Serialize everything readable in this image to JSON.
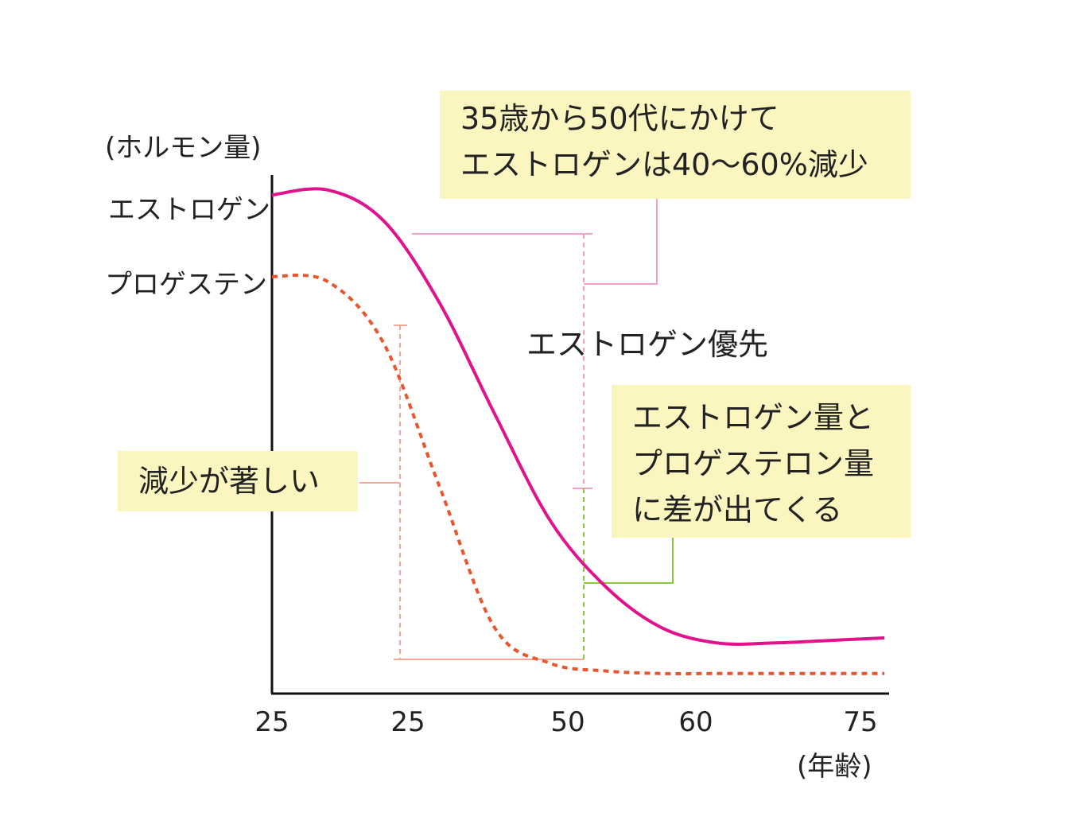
{
  "chart_data": {
    "type": "line",
    "ylabel": "(ホルモン量)",
    "xlabel": "(年齢)",
    "x_tick_labels": [
      "25",
      "25",
      "50",
      "60",
      "75"
    ],
    "grid": false,
    "legend": "none",
    "x": [
      20,
      25,
      30,
      35,
      40,
      45,
      50,
      55,
      60,
      65,
      70,
      75
    ],
    "series": [
      {
        "name": "エストロゲン",
        "style": "solid",
        "color": "#e0138c",
        "values": [
          0.97,
          0.98,
          0.92,
          0.76,
          0.54,
          0.33,
          0.2,
          0.12,
          0.09,
          0.09,
          0.095,
          0.1
        ]
      },
      {
        "name": "プロゲステン",
        "style": "dashed",
        "color": "#e8562f",
        "values": [
          0.81,
          0.8,
          0.68,
          0.4,
          0.12,
          0.05,
          0.035,
          0.03,
          0.03,
          0.03,
          0.03,
          0.03
        ]
      }
    ],
    "annotations": [
      {
        "id": "estrogen_drop",
        "text": "35歳から50代にかけて\nエストロゲンは40〜60%減少"
      },
      {
        "id": "estrogen_priority",
        "text": "エストロゲン優先"
      },
      {
        "id": "difference",
        "text": "エストロゲン量と\nプロゲステロン量\nに差が出てくる"
      },
      {
        "id": "progesterone_drop",
        "text": "減少が著しい"
      }
    ]
  }
}
